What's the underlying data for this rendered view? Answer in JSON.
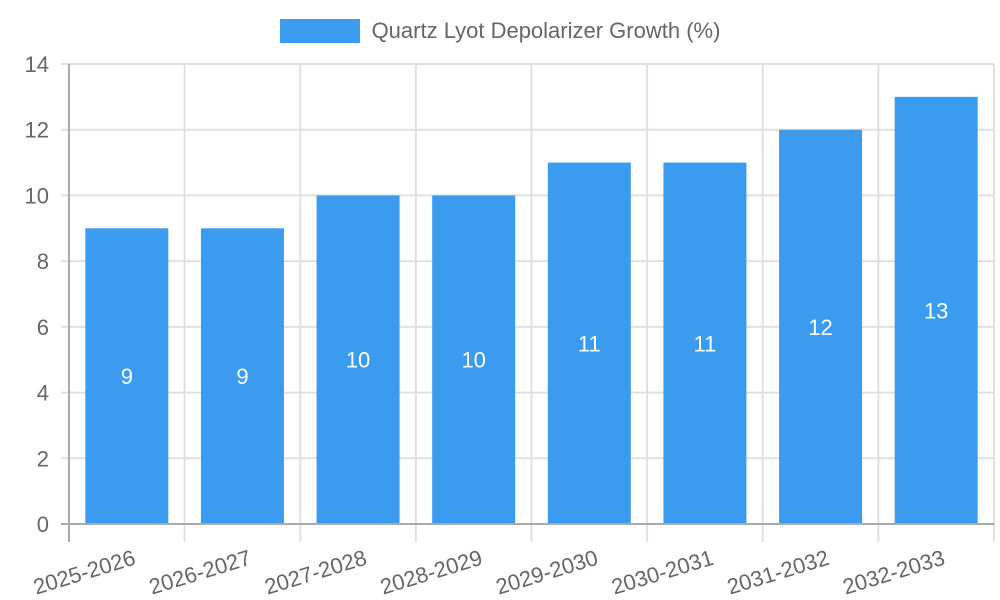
{
  "chart_data": {
    "type": "bar",
    "title": "",
    "xlabel": "",
    "ylabel": "",
    "categories": [
      "2025-2026",
      "2026-2027",
      "2027-2028",
      "2028-2029",
      "2029-2030",
      "2030-2031",
      "2031-2032",
      "2032-2033"
    ],
    "series": [
      {
        "name": "Quartz Lyot Depolarizer Growth (%)",
        "values": [
          9,
          9,
          10,
          10,
          11,
          11,
          12,
          13
        ],
        "color": "#3a9bef"
      }
    ],
    "ylim": [
      0,
      14
    ],
    "yticks": [
      0,
      2,
      4,
      6,
      8,
      10,
      12,
      14
    ],
    "grid": true,
    "legend_position": "top",
    "data_labels": true
  },
  "legend": {
    "label": "Quartz Lyot Depolarizer Growth (%)",
    "color": "#3a9bef"
  }
}
